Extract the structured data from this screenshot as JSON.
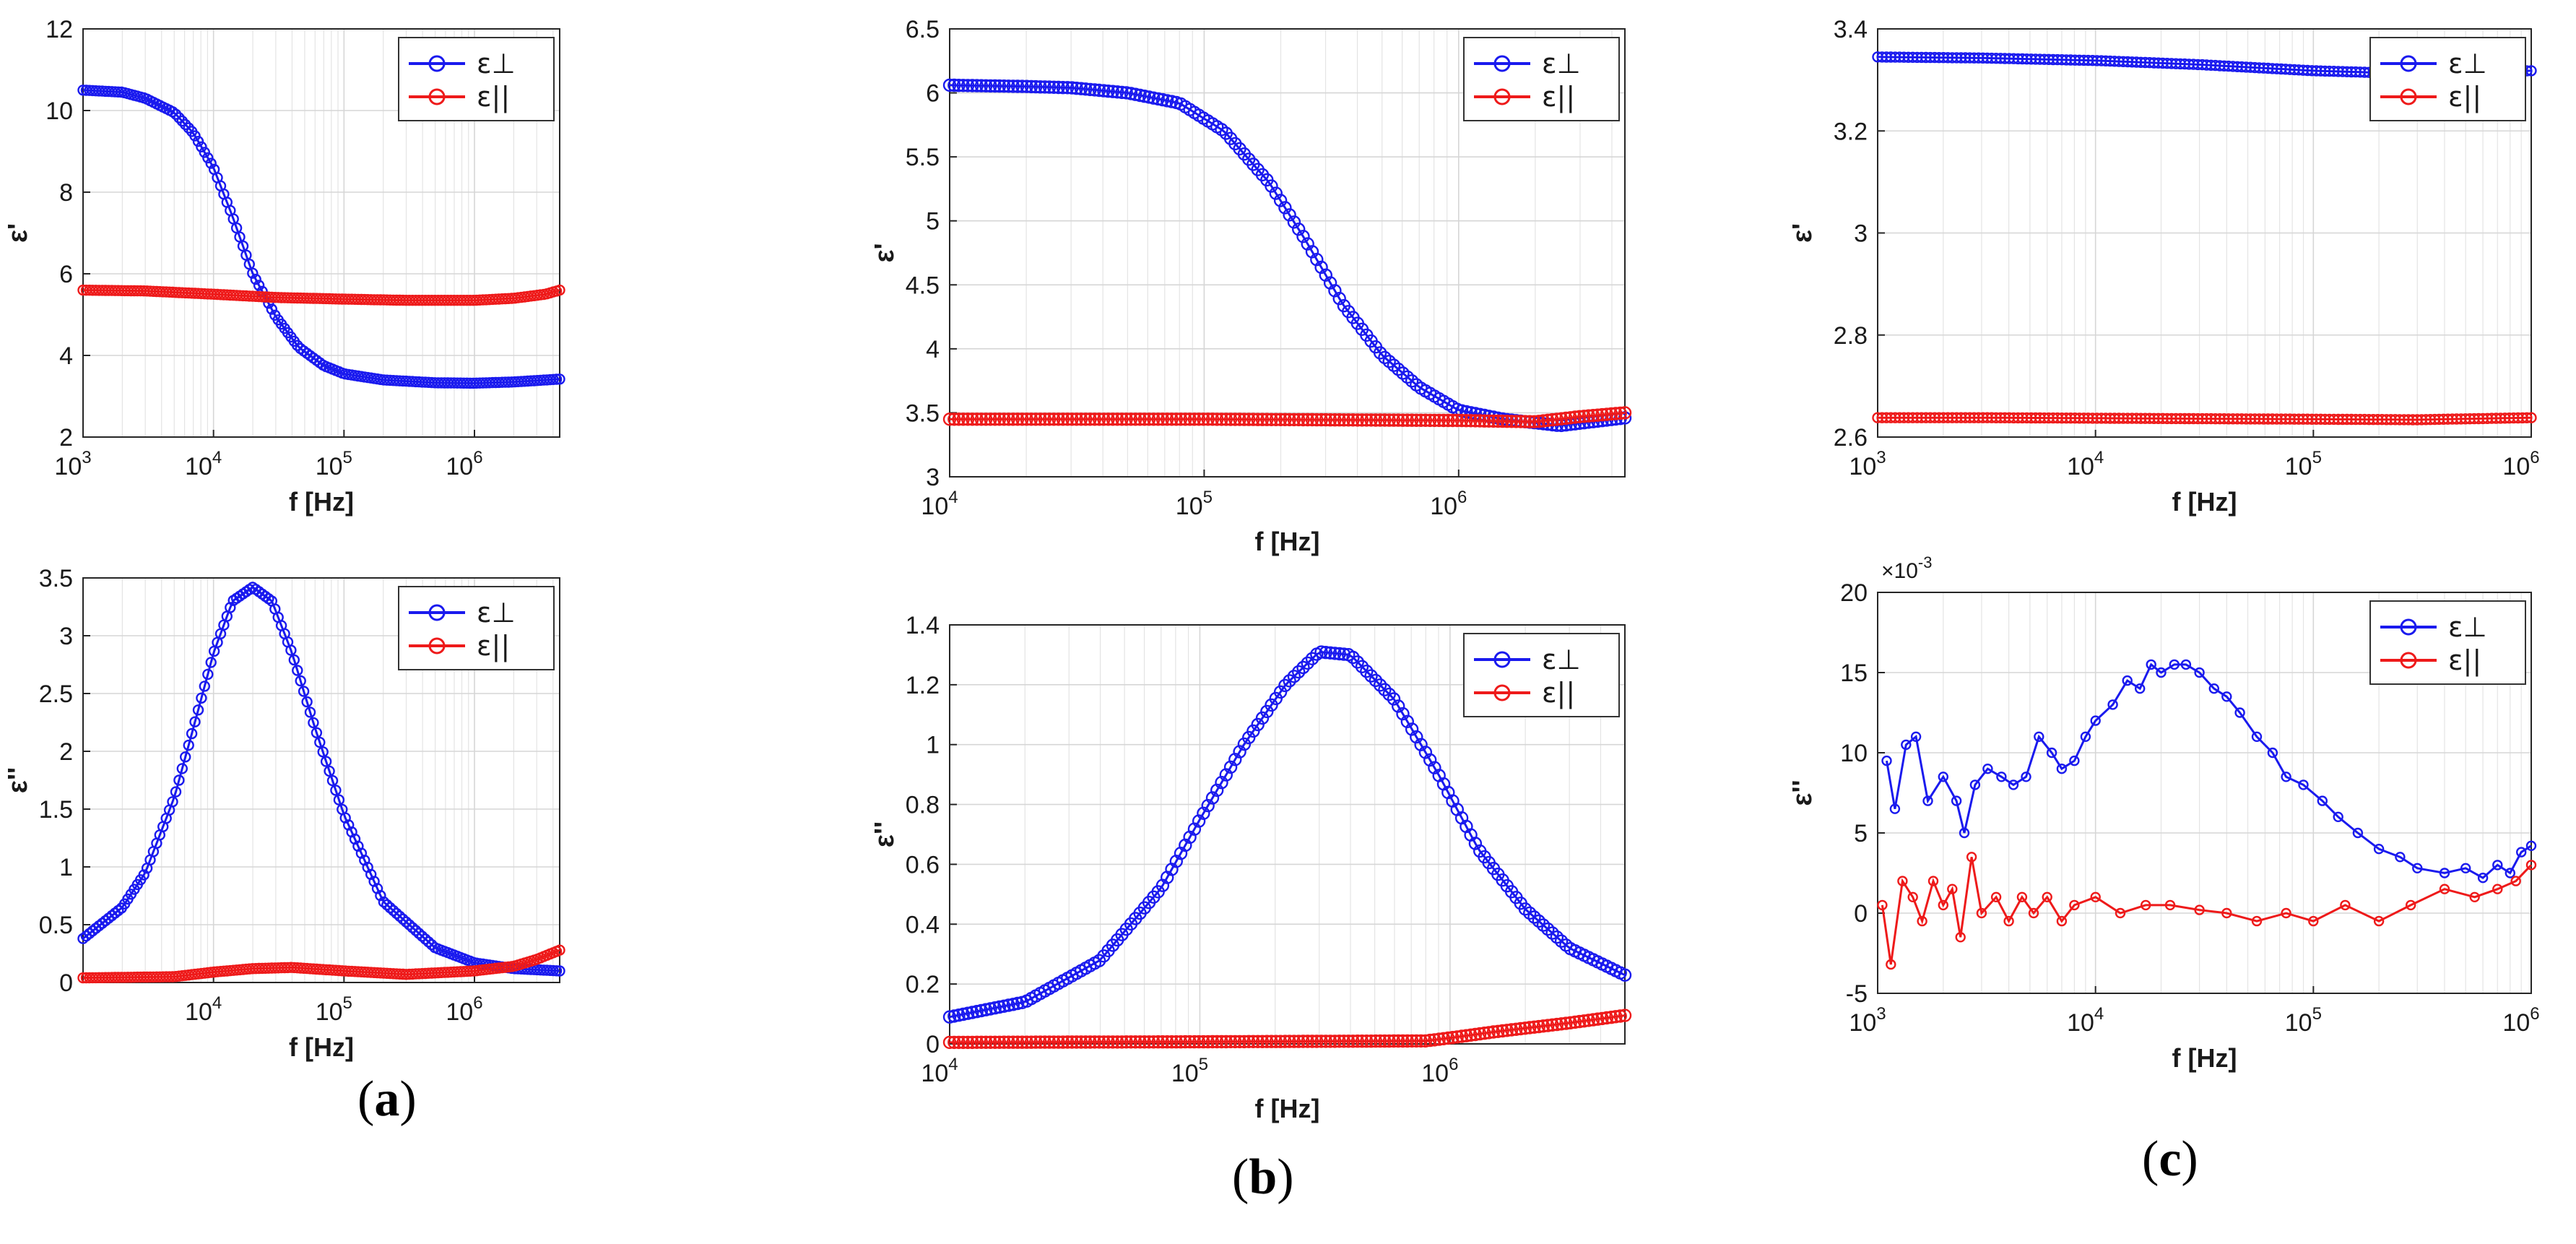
{
  "colors": {
    "perp": "#1a1aee",
    "par": "#ee1a1a",
    "grid": "#e4e4e4",
    "axis": "#262626"
  },
  "legend": {
    "perp": "ε⊥",
    "par": "ε||"
  },
  "panel_labels": [
    {
      "open": "(",
      "letter": "a",
      "close": ")"
    },
    {
      "open": "(",
      "letter": "b",
      "close": ")"
    },
    {
      "open": "(",
      "letter": "c",
      "close": ")"
    }
  ],
  "chart_data": [
    {
      "id": "a-top",
      "type": "line",
      "panel": "a",
      "xlabel": "f [Hz]",
      "ylabel": "ε'",
      "xlim": [
        1000,
        4500000
      ],
      "ylim": [
        2,
        12
      ],
      "xticks": [
        {
          "v": 1000,
          "e": "3"
        },
        {
          "v": 10000,
          "e": "4"
        },
        {
          "v": 100000,
          "e": "5"
        },
        {
          "v": 1000000,
          "e": "6"
        }
      ],
      "yticks": [
        {
          "v": 2,
          "t": "2"
        },
        {
          "v": 4,
          "t": "4"
        },
        {
          "v": 6,
          "t": "6"
        },
        {
          "v": 8,
          "t": "8"
        },
        {
          "v": 10,
          "t": "10"
        },
        {
          "v": 12,
          "t": "12"
        }
      ],
      "series": [
        {
          "name": "ε⊥",
          "key": "perp",
          "x": [
            1000,
            2000,
            3000,
            5000,
            7000,
            10000,
            14000,
            20000,
            30000,
            45000,
            70000,
            100000,
            200000,
            500000,
            1000000,
            2000000,
            4500000
          ],
          "y": [
            10.5,
            10.45,
            10.3,
            9.95,
            9.45,
            8.6,
            7.4,
            6.0,
            4.95,
            4.2,
            3.75,
            3.55,
            3.4,
            3.33,
            3.32,
            3.35,
            3.42
          ]
        },
        {
          "name": "ε||",
          "key": "par",
          "x": [
            1000,
            3000,
            10000,
            30000,
            100000,
            300000,
            1000000,
            2000000,
            3500000,
            4500000
          ],
          "y": [
            5.6,
            5.58,
            5.5,
            5.42,
            5.38,
            5.35,
            5.35,
            5.4,
            5.5,
            5.6
          ]
        }
      ],
      "legend": "top-right"
    },
    {
      "id": "a-bottom",
      "type": "line",
      "panel": "a",
      "xlabel": "f [Hz]",
      "ylabel": "ε''",
      "xlim": [
        1000,
        4500000
      ],
      "ylim": [
        0,
        3.5
      ],
      "xticks": [
        {
          "v": 10000,
          "e": "4"
        },
        {
          "v": 100000,
          "e": "5"
        },
        {
          "v": 1000000,
          "e": "6"
        }
      ],
      "yticks": [
        {
          "v": 0,
          "t": "0"
        },
        {
          "v": 0.5,
          "t": "0.5"
        },
        {
          "v": 1,
          "t": "1"
        },
        {
          "v": 1.5,
          "t": "1.5"
        },
        {
          "v": 2,
          "t": "2"
        },
        {
          "v": 2.5,
          "t": "2.5"
        },
        {
          "v": 3,
          "t": "3"
        },
        {
          "v": 3.5,
          "t": "3.5"
        }
      ],
      "series": [
        {
          "name": "ε⊥",
          "key": "perp",
          "x": [
            1000,
            2000,
            3000,
            5000,
            7000,
            10000,
            14000,
            20000,
            28000,
            40000,
            60000,
            100000,
            200000,
            500000,
            1000000,
            2000000,
            4500000
          ],
          "y": [
            0.38,
            0.65,
            0.95,
            1.6,
            2.2,
            2.85,
            3.3,
            3.42,
            3.3,
            2.85,
            2.2,
            1.45,
            0.7,
            0.3,
            0.17,
            0.12,
            0.1
          ]
        },
        {
          "name": "ε||",
          "key": "par",
          "x": [
            1000,
            5000,
            10000,
            20000,
            40000,
            100000,
            300000,
            1000000,
            2000000,
            3000000,
            4500000
          ],
          "y": [
            0.04,
            0.05,
            0.09,
            0.12,
            0.13,
            0.1,
            0.07,
            0.1,
            0.14,
            0.2,
            0.28
          ]
        }
      ],
      "legend": "top-right"
    },
    {
      "id": "b-top",
      "type": "line",
      "panel": "b",
      "xlabel": "f [Hz]",
      "ylabel": "ε'",
      "xlim": [
        10000,
        4500000
      ],
      "ylim": [
        3,
        6.5
      ],
      "xticks": [
        {
          "v": 10000,
          "e": "4"
        },
        {
          "v": 100000,
          "e": "5"
        },
        {
          "v": 1000000,
          "e": "6"
        }
      ],
      "yticks": [
        {
          "v": 3,
          "t": "3"
        },
        {
          "v": 3.5,
          "t": "3.5"
        },
        {
          "v": 4,
          "t": "4"
        },
        {
          "v": 4.5,
          "t": "4.5"
        },
        {
          "v": 5,
          "t": "5"
        },
        {
          "v": 5.5,
          "t": "5.5"
        },
        {
          "v": 6,
          "t": "6"
        },
        {
          "v": 6.5,
          "t": "6.5"
        }
      ],
      "series": [
        {
          "name": "ε⊥",
          "key": "perp",
          "x": [
            10000,
            20000,
            30000,
            50000,
            80000,
            120000,
            180000,
            250000,
            350000,
            500000,
            700000,
            1000000,
            1500000,
            2500000,
            4500000
          ],
          "y": [
            6.06,
            6.05,
            6.04,
            6.0,
            5.92,
            5.7,
            5.3,
            4.85,
            4.35,
            3.95,
            3.7,
            3.52,
            3.45,
            3.4,
            3.46
          ]
        },
        {
          "name": "ε||",
          "key": "par",
          "x": [
            10000,
            100000,
            1000000,
            2000000,
            3000000,
            4500000
          ],
          "y": [
            3.45,
            3.45,
            3.44,
            3.43,
            3.47,
            3.5
          ]
        }
      ],
      "legend": "top-right"
    },
    {
      "id": "b-bottom",
      "type": "line",
      "panel": "b",
      "xlabel": "f [Hz]",
      "ylabel": "ε''",
      "xlim": [
        10000,
        5000000
      ],
      "ylim": [
        0,
        1.4
      ],
      "xticks": [
        {
          "v": 10000,
          "e": "4"
        },
        {
          "v": 100000,
          "e": "5"
        },
        {
          "v": 1000000,
          "e": "6"
        }
      ],
      "yticks": [
        {
          "v": 0,
          "t": "0"
        },
        {
          "v": 0.2,
          "t": "0.2"
        },
        {
          "v": 0.4,
          "t": "0.4"
        },
        {
          "v": 0.6,
          "t": "0.6"
        },
        {
          "v": 0.8,
          "t": "0.8"
        },
        {
          "v": 1,
          "t": "1"
        },
        {
          "v": 1.2,
          "t": "1.2"
        },
        {
          "v": 1.4,
          "t": "1.4"
        }
      ],
      "series": [
        {
          "name": "ε⊥",
          "key": "perp",
          "x": [
            10000,
            20000,
            40000,
            70000,
            100000,
            150000,
            220000,
            300000,
            400000,
            600000,
            900000,
            1300000,
            2000000,
            3000000,
            5000000
          ],
          "y": [
            0.09,
            0.14,
            0.28,
            0.52,
            0.75,
            1.0,
            1.2,
            1.31,
            1.3,
            1.15,
            0.9,
            0.65,
            0.45,
            0.32,
            0.23
          ]
        },
        {
          "name": "ε||",
          "key": "par",
          "x": [
            10000,
            100000,
            800000,
            1000000,
            1500000,
            3000000,
            5000000
          ],
          "y": [
            0.005,
            0.007,
            0.01,
            0.02,
            0.04,
            0.07,
            0.095
          ]
        }
      ],
      "legend": "top-right"
    },
    {
      "id": "c-top",
      "type": "line",
      "panel": "c",
      "xlabel": "f [Hz]",
      "ylabel": "ε'",
      "xlim": [
        1000,
        1000000
      ],
      "ylim": [
        2.6,
        3.4
      ],
      "xticks": [
        {
          "v": 1000,
          "e": "3"
        },
        {
          "v": 10000,
          "e": "4"
        },
        {
          "v": 100000,
          "e": "5"
        },
        {
          "v": 1000000,
          "e": "6"
        }
      ],
      "yticks": [
        {
          "v": 2.6,
          "t": "2.6"
        },
        {
          "v": 2.8,
          "t": "2.8"
        },
        {
          "v": 3,
          "t": "3"
        },
        {
          "v": 3.2,
          "t": "3.2"
        },
        {
          "v": 3.4,
          "t": "3.4"
        }
      ],
      "series": [
        {
          "name": "ε⊥",
          "key": "perp",
          "x": [
            1000,
            3000,
            10000,
            30000,
            100000,
            300000,
            1000000
          ],
          "y": [
            3.345,
            3.343,
            3.338,
            3.33,
            3.318,
            3.312,
            3.318
          ]
        },
        {
          "name": "ε||",
          "key": "par",
          "x": [
            1000,
            3000,
            10000,
            30000,
            100000,
            300000,
            1000000
          ],
          "y": [
            2.638,
            2.638,
            2.637,
            2.636,
            2.635,
            2.634,
            2.638
          ]
        }
      ],
      "legend": "top-right"
    },
    {
      "id": "c-bottom",
      "type": "line",
      "panel": "c",
      "xlabel": "f [Hz]",
      "ylabel": "ε''",
      "xlim": [
        1000,
        1000000
      ],
      "ylim": [
        -5,
        20
      ],
      "multiplier": {
        "base": "×10",
        "exp": "-3"
      },
      "xticks": [
        {
          "v": 1000,
          "e": "3"
        },
        {
          "v": 10000,
          "e": "4"
        },
        {
          "v": 100000,
          "e": "5"
        },
        {
          "v": 1000000,
          "e": "6"
        }
      ],
      "yticks": [
        {
          "v": -5,
          "t": "-5"
        },
        {
          "v": 0,
          "t": "0"
        },
        {
          "v": 5,
          "t": "5"
        },
        {
          "v": 10,
          "t": "10"
        },
        {
          "v": 15,
          "t": "15"
        },
        {
          "v": 20,
          "t": "20"
        }
      ],
      "series": [
        {
          "name": "ε⊥",
          "key": "perp",
          "x": [
            1100,
            1200,
            1350,
            1500,
            1700,
            2000,
            2300,
            2500,
            2800,
            3200,
            3700,
            4200,
            4800,
            5500,
            6300,
            7000,
            8000,
            9000,
            10000,
            12000,
            14000,
            16000,
            18000,
            20000,
            23000,
            26000,
            30000,
            35000,
            40000,
            46000,
            55000,
            65000,
            75000,
            90000,
            110000,
            130000,
            160000,
            200000,
            250000,
            300000,
            400000,
            500000,
            600000,
            700000,
            800000,
            900000,
            1000000
          ],
          "y": [
            9.5,
            6.5,
            10.5,
            11,
            7,
            8.5,
            7,
            5,
            8,
            9,
            8.5,
            8,
            8.5,
            11,
            10,
            9,
            9.5,
            11,
            12,
            13,
            14.5,
            14,
            15.5,
            15,
            15.5,
            15.5,
            15,
            14,
            13.5,
            12.5,
            11,
            10,
            8.5,
            8,
            7,
            6,
            5,
            4,
            3.5,
            2.8,
            2.5,
            2.8,
            2.2,
            3,
            2.5,
            3.8,
            4.2
          ]
        },
        {
          "name": "ε||",
          "key": "par",
          "x": [
            1050,
            1150,
            1300,
            1450,
            1600,
            1800,
            2000,
            2200,
            2400,
            2700,
            3000,
            3500,
            4000,
            4600,
            5200,
            6000,
            7000,
            8000,
            10000,
            13000,
            17000,
            22000,
            30000,
            40000,
            55000,
            75000,
            100000,
            140000,
            200000,
            280000,
            400000,
            550000,
            700000,
            850000,
            1000000
          ],
          "y": [
            0.5,
            -3.2,
            2,
            1,
            -0.5,
            2,
            0.5,
            1.5,
            -1.5,
            3.5,
            0,
            1,
            -0.5,
            1,
            0,
            1,
            -0.5,
            0.5,
            1,
            0,
            0.5,
            0.5,
            0.2,
            0,
            -0.5,
            0,
            -0.5,
            0.5,
            -0.5,
            0.5,
            1.5,
            1,
            1.5,
            2,
            3
          ]
        }
      ],
      "legend": "top-right"
    }
  ]
}
